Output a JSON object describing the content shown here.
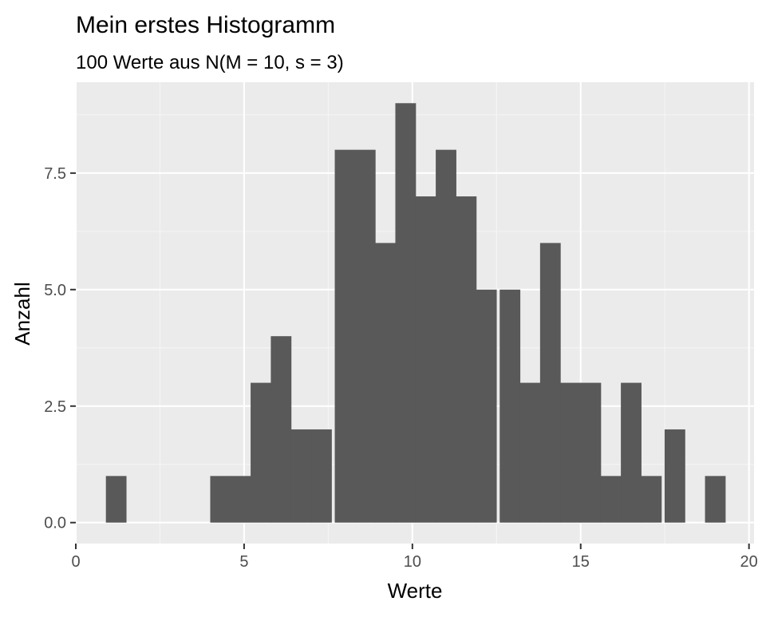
{
  "chart_data": {
    "type": "bar",
    "title": "Mein erstes Histogramm",
    "subtitle": "100 Werte aus N(M = 10, s = 3)",
    "xlabel": "Werte",
    "ylabel": "Anzahl",
    "xlim": [
      0,
      20.15
    ],
    "ylim": [
      -0.45,
      9.45
    ],
    "x_ticks": [
      0,
      5,
      10,
      15,
      20
    ],
    "x_tick_labels": [
      "0",
      "5",
      "10",
      "15",
      "20"
    ],
    "y_ticks": [
      0,
      2.5,
      5,
      7.5
    ],
    "y_tick_labels": [
      "0.0",
      "2.5",
      "5.0",
      "7.5"
    ],
    "grid": true,
    "bin_width": 0.6125,
    "bins": [
      {
        "x": 1.2,
        "count": 1
      },
      {
        "x": 1.8,
        "count": 0
      },
      {
        "x": 2.4,
        "count": 0
      },
      {
        "x": 3.1,
        "count": 0
      },
      {
        "x": 3.7,
        "count": 0
      },
      {
        "x": 4.3,
        "count": 1
      },
      {
        "x": 4.9,
        "count": 1
      },
      {
        "x": 5.5,
        "count": 3
      },
      {
        "x": 6.1,
        "count": 4
      },
      {
        "x": 6.7,
        "count": 2
      },
      {
        "x": 7.3,
        "count": 2
      },
      {
        "x": 8.0,
        "count": 8
      },
      {
        "x": 8.6,
        "count": 8
      },
      {
        "x": 9.2,
        "count": 6
      },
      {
        "x": 9.8,
        "count": 9
      },
      {
        "x": 10.4,
        "count": 7
      },
      {
        "x": 11.0,
        "count": 8
      },
      {
        "x": 11.6,
        "count": 7
      },
      {
        "x": 12.2,
        "count": 5
      },
      {
        "x": 12.9,
        "count": 5
      },
      {
        "x": 13.5,
        "count": 3
      },
      {
        "x": 14.1,
        "count": 6
      },
      {
        "x": 14.7,
        "count": 3
      },
      {
        "x": 15.3,
        "count": 3
      },
      {
        "x": 15.9,
        "count": 1
      },
      {
        "x": 16.5,
        "count": 3
      },
      {
        "x": 17.1,
        "count": 1
      },
      {
        "x": 17.8,
        "count": 2
      },
      {
        "x": 18.4,
        "count": 0
      },
      {
        "x": 19.0,
        "count": 1
      }
    ],
    "colors": {
      "bar": "#595959",
      "panel": "#ebebeb",
      "grid_major": "#ffffff",
      "grid_minor": "#f5f5f5",
      "tick_label": "#4d4d4d",
      "axis_tick": "#333333"
    }
  }
}
